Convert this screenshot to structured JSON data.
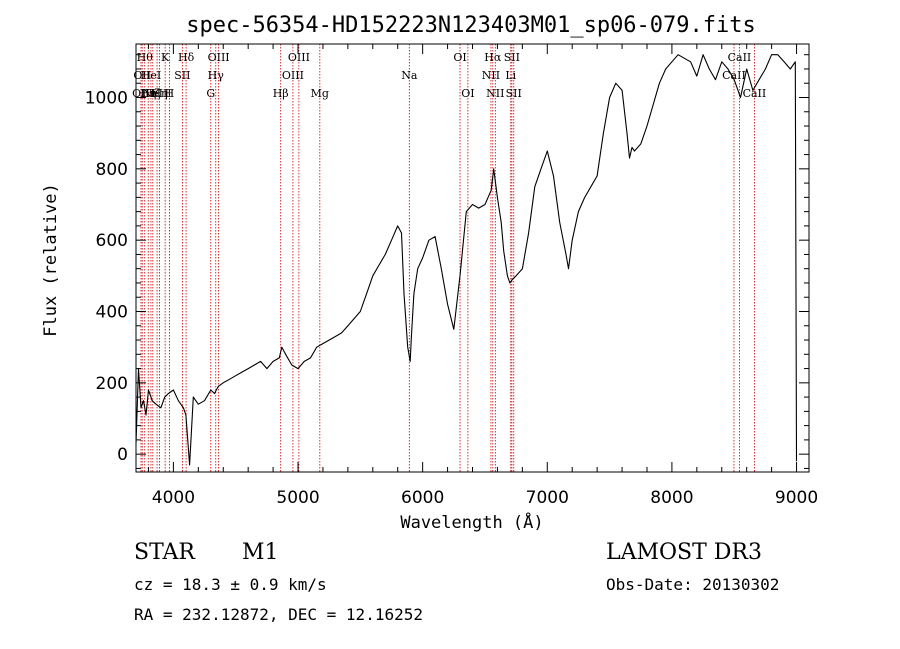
{
  "chart_data": {
    "type": "line",
    "title": "spec-56354-HD152223N123403M01_sp06-079.fits",
    "xlabel": "Wavelength (Å)",
    "ylabel": "Flux (relative)",
    "xlim": [
      3700,
      9100
    ],
    "ylim": [
      -50,
      1150
    ],
    "xticks": [
      4000,
      5000,
      6000,
      7000,
      8000,
      9000
    ],
    "yticks": [
      0,
      200,
      400,
      600,
      800,
      1000
    ],
    "grid": false,
    "series": [
      {
        "name": "spectrum",
        "x": [
          3700,
          3720,
          3740,
          3760,
          3780,
          3800,
          3830,
          3860,
          3900,
          3930,
          3960,
          4000,
          4040,
          4080,
          4100,
          4130,
          4160,
          4200,
          4250,
          4300,
          4330,
          4360,
          4400,
          4450,
          4500,
          4550,
          4600,
          4650,
          4700,
          4750,
          4800,
          4850,
          4870,
          4900,
          4950,
          5000,
          5050,
          5100,
          5150,
          5200,
          5250,
          5300,
          5350,
          5400,
          5450,
          5500,
          5550,
          5600,
          5650,
          5700,
          5750,
          5800,
          5830,
          5850,
          5880,
          5900,
          5910,
          5930,
          5960,
          6000,
          6050,
          6100,
          6150,
          6200,
          6250,
          6300,
          6350,
          6400,
          6450,
          6500,
          6550,
          6570,
          6600,
          6630,
          6650,
          6680,
          6700,
          6720,
          6750,
          6800,
          6850,
          6900,
          6950,
          7000,
          7050,
          7100,
          7150,
          7170,
          7200,
          7250,
          7300,
          7350,
          7400,
          7450,
          7500,
          7550,
          7600,
          7640,
          7660,
          7680,
          7700,
          7750,
          7800,
          7850,
          7900,
          7950,
          8000,
          8050,
          8100,
          8150,
          8200,
          8250,
          8300,
          8350,
          8400,
          8450,
          8500,
          8550,
          8600,
          8650,
          8700,
          8750,
          8800,
          8850,
          8900,
          8950,
          8990,
          9000
        ],
        "y": [
          30,
          240,
          130,
          150,
          110,
          180,
          150,
          140,
          130,
          160,
          170,
          180,
          150,
          130,
          110,
          -30,
          160,
          140,
          150,
          180,
          170,
          190,
          200,
          210,
          220,
          230,
          240,
          250,
          260,
          240,
          260,
          270,
          300,
          280,
          250,
          240,
          260,
          270,
          300,
          310,
          320,
          330,
          340,
          360,
          380,
          400,
          450,
          500,
          530,
          560,
          600,
          640,
          620,
          450,
          300,
          260,
          330,
          450,
          520,
          550,
          600,
          610,
          520,
          420,
          350,
          500,
          680,
          700,
          690,
          700,
          740,
          800,
          720,
          650,
          570,
          500,
          480,
          490,
          500,
          520,
          620,
          750,
          800,
          850,
          780,
          650,
          560,
          520,
          600,
          680,
          720,
          750,
          780,
          900,
          1000,
          1040,
          1020,
          900,
          830,
          860,
          850,
          870,
          920,
          980,
          1040,
          1080,
          1100,
          1120,
          1110,
          1100,
          1060,
          1120,
          1080,
          1050,
          1100,
          1080,
          1050,
          1000,
          1080,
          1020,
          1050,
          1080,
          1120,
          1120,
          1100,
          1080,
          1100,
          -20
        ]
      }
    ],
    "lines": [
      {
        "x": 3740,
        "labels": [
          "",
          "",
          "OII"
        ]
      },
      {
        "x": 3750,
        "labels": [
          "",
          "OII",
          ""
        ]
      },
      {
        "x": 3770,
        "labels": [
          "Hθ",
          "",
          ""
        ]
      },
      {
        "x": 3798,
        "labels": [
          "",
          "",
          "Hη"
        ]
      },
      {
        "x": 3820,
        "labels": [
          "",
          "HeI",
          ""
        ]
      },
      {
        "x": 3835,
        "labels": [
          "",
          "",
          "Hζ"
        ]
      },
      {
        "x": 3869,
        "labels": [
          "",
          "",
          "NeIII"
        ]
      },
      {
        "x": 3889,
        "labels": [
          "",
          "",
          "Hη"
        ]
      },
      {
        "x": 3934,
        "labels": [
          "K",
          "",
          ""
        ]
      },
      {
        "x": 3968,
        "labels": [
          "",
          "",
          "H"
        ]
      },
      {
        "x": 4072,
        "labels": [
          "",
          "SII",
          ""
        ]
      },
      {
        "x": 4102,
        "labels": [
          "Hδ",
          "",
          ""
        ]
      },
      {
        "x": 4300,
        "labels": [
          "",
          "",
          "G"
        ]
      },
      {
        "x": 4340,
        "labels": [
          "",
          "Hγ",
          ""
        ]
      },
      {
        "x": 4363,
        "labels": [
          "OIII",
          "",
          ""
        ]
      },
      {
        "x": 4861,
        "labels": [
          "",
          "",
          "Hβ"
        ]
      },
      {
        "x": 4959,
        "labels": [
          "",
          "OIII",
          ""
        ]
      },
      {
        "x": 5007,
        "labels": [
          "OIII",
          "",
          ""
        ]
      },
      {
        "x": 5175,
        "labels": [
          "",
          "",
          "Mg"
        ]
      },
      {
        "x": 5893,
        "labels": [
          "",
          "Na",
          ""
        ]
      },
      {
        "x": 6300,
        "labels": [
          "OI",
          "",
          ""
        ]
      },
      {
        "x": 6363,
        "labels": [
          "",
          "",
          "OI"
        ]
      },
      {
        "x": 6548,
        "labels": [
          "",
          "NII",
          ""
        ]
      },
      {
        "x": 6563,
        "labels": [
          "Hα",
          "",
          ""
        ]
      },
      {
        "x": 6583,
        "labels": [
          "",
          "",
          "NII"
        ]
      },
      {
        "x": 6707,
        "labels": [
          "",
          "Li",
          ""
        ]
      },
      {
        "x": 6716,
        "labels": [
          "SII",
          "",
          ""
        ]
      },
      {
        "x": 6731,
        "labels": [
          "",
          "",
          "SII"
        ]
      },
      {
        "x": 8498,
        "labels": [
          "",
          "CaII",
          ""
        ]
      },
      {
        "x": 8542,
        "labels": [
          "CaII",
          "",
          ""
        ]
      },
      {
        "x": 8662,
        "labels": [
          "",
          "",
          "CaII"
        ]
      }
    ]
  },
  "info": {
    "class": "STAR",
    "subclass": "M1",
    "survey": "LAMOST DR3",
    "cz": "cz = 18.3 ± 0.9 km/s",
    "obs_date": "Obs-Date: 20130302",
    "coords": "RA = 232.12872, DEC =  12.16252"
  },
  "colors": {
    "line": "#000000",
    "marker": "#cc0000",
    "axis": "#000000"
  }
}
